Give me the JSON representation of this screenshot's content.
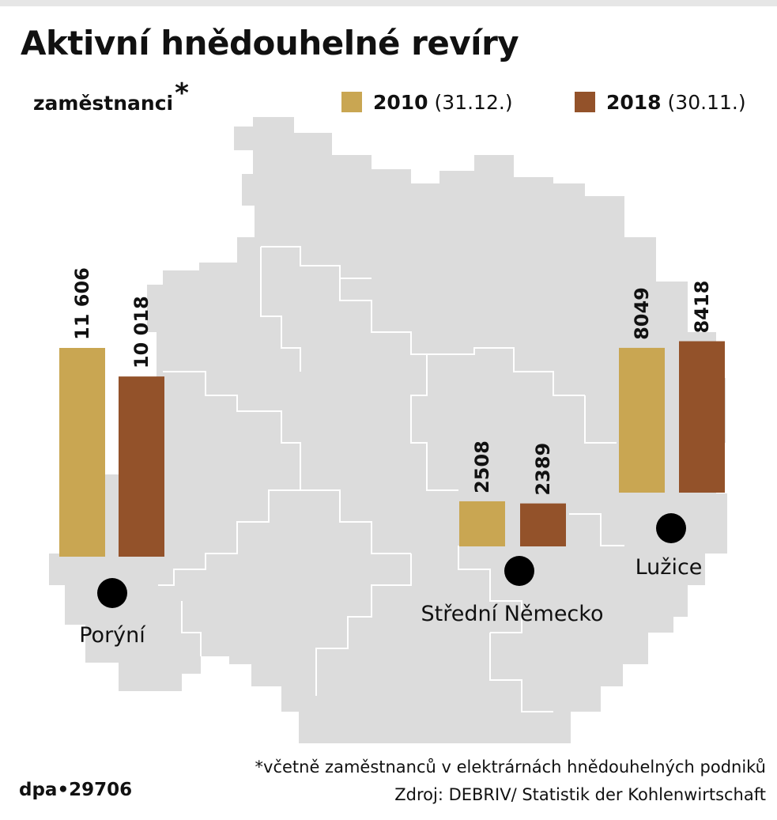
{
  "title": "Aktivní hnědouhelné revíry",
  "subtitle": "zaměstnanci",
  "subtitle_mark": "*",
  "legend": [
    {
      "year": "2010",
      "date": "(31.12.)",
      "color": "#c9a652"
    },
    {
      "year": "2018",
      "date": "(30.11.)",
      "color": "#93522a"
    }
  ],
  "chart_data": {
    "type": "bar",
    "categories": [
      "Porýní",
      "Střední Německo",
      "Lužice"
    ],
    "series": [
      {
        "name": "2010",
        "color": "#c9a652",
        "values": [
          11606,
          2508,
          8049
        ],
        "labels": [
          "11 606",
          "2508",
          "8049"
        ]
      },
      {
        "name": "2018",
        "color": "#93522a",
        "values": [
          10018,
          2389,
          8418
        ],
        "labels": [
          "10 018",
          "2389",
          "8418"
        ]
      }
    ],
    "title": "Aktivní hnědouhelné revíry",
    "ylabel": "zaměstnanci*"
  },
  "map": {
    "land_color": "#dcdcdc",
    "border_color": "#ffffff",
    "marker_color": "#000000"
  },
  "footnote": "*včetně zaměstnanců v elektrárnách hnědouhelných podniků",
  "source": "Zdroj: DEBRIV/ Statistik der Kohlenwirtschaft",
  "agency": "dpa•29706"
}
